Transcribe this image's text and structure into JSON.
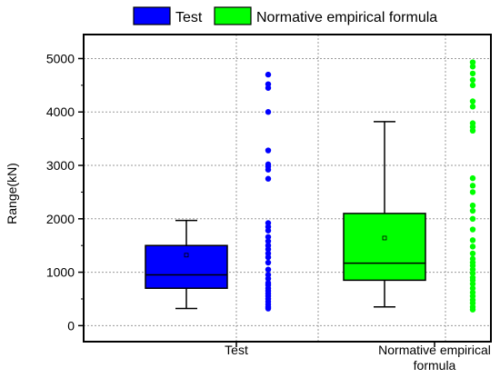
{
  "chart_data": {
    "type": "box",
    "title": "",
    "xlabel": "",
    "ylabel": "Range(kN)",
    "ylim": [
      -300,
      5450
    ],
    "yticks": [
      0,
      1000,
      2000,
      3000,
      4000,
      5000
    ],
    "grid": true,
    "legend_position": "top",
    "categories": [
      {
        "label": "Test",
        "lines": [
          "Test"
        ]
      },
      {
        "label": "Normative empirical formula",
        "lines": [
          "Normative empirical",
          "formula"
        ]
      }
    ],
    "series": [
      {
        "name": "Test",
        "color": "#0000ff",
        "box": {
          "whisker_low": 320,
          "q1": 700,
          "median": 950,
          "q3": 1500,
          "whisker_high": 1970,
          "mean": 1320
        },
        "points": [
          4700,
          4520,
          4450,
          4000,
          3280,
          3020,
          2980,
          2920,
          2750,
          1920,
          1850,
          1780,
          1660,
          1580,
          1500,
          1430,
          1350,
          1280,
          1180,
          1050,
          950,
          880,
          800,
          760,
          700,
          650,
          600,
          550,
          500,
          450,
          400,
          350,
          320
        ]
      },
      {
        "name": "Normative empirical formula",
        "color": "#00ff00",
        "box": {
          "whisker_low": 350,
          "q1": 850,
          "median": 1170,
          "q3": 2100,
          "whisker_high": 3820,
          "mean": 1640
        },
        "points": [
          4930,
          4850,
          4720,
          4600,
          4500,
          4200,
          4100,
          3790,
          3720,
          3650,
          2760,
          2620,
          2500,
          2250,
          2150,
          2000,
          1800,
          1600,
          1480,
          1350,
          1250,
          1180,
          1120,
          1050,
          980,
          900,
          850,
          780,
          700,
          620,
          550,
          480,
          420,
          350,
          300
        ]
      }
    ]
  }
}
